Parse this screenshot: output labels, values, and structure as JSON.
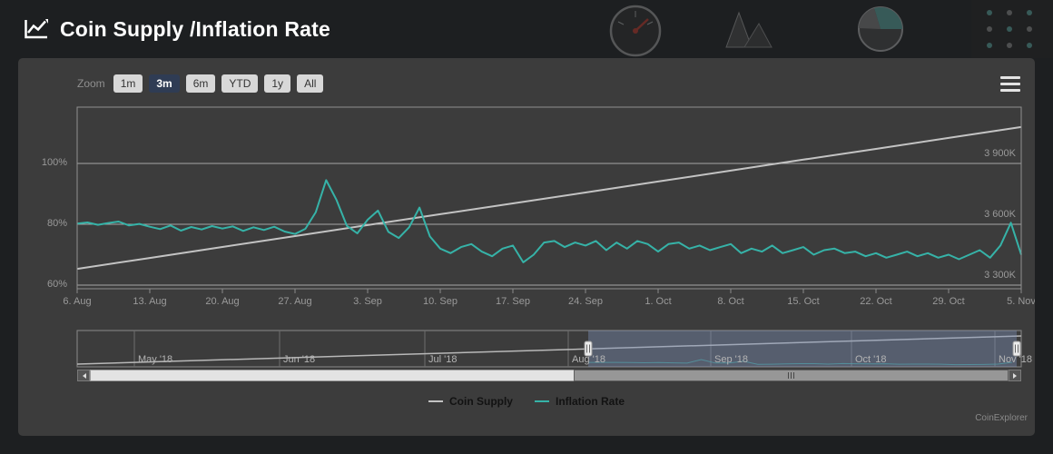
{
  "header": {
    "title": "Coin Supply /Inflation Rate"
  },
  "icons": {
    "title": "line-chart-icon",
    "context_menu": "hamburger-icon",
    "header_art": [
      "gauge-icon",
      "crystals-icon",
      "pie-chart-icon",
      "dot-grid-icon"
    ]
  },
  "toolbar": {
    "zoom_label": "Zoom",
    "buttons": [
      {
        "label": "1m",
        "selected": false
      },
      {
        "label": "3m",
        "selected": true
      },
      {
        "label": "6m",
        "selected": false
      },
      {
        "label": "YTD",
        "selected": false
      },
      {
        "label": "1y",
        "selected": false
      },
      {
        "label": "All",
        "selected": false
      }
    ]
  },
  "chart_data": {
    "type": "line",
    "title": "Coin Supply /Inflation Rate",
    "grid": "horizontal",
    "legend_position": "bottom",
    "x_tick_labels": [
      "6. Aug",
      "13. Aug",
      "20. Aug",
      "27. Aug",
      "3. Sep",
      "10. Sep",
      "17. Sep",
      "24. Sep",
      "1. Oct",
      "8. Oct",
      "15. Oct",
      "22. Oct",
      "29. Oct",
      "5. Nov"
    ],
    "y_axis_left": {
      "unit": "%",
      "tick_labels": [
        "100%",
        "80%",
        "60%"
      ],
      "tick_values": [
        100,
        80,
        60
      ],
      "range": [
        58.8,
        118.5
      ]
    },
    "y_axis_right": {
      "unit": "K",
      "tick_labels": [
        "3 900K",
        "3 600K",
        "3 300K"
      ],
      "tick_values": [
        3900,
        3600,
        3300
      ],
      "range": [
        3282,
        4178
      ]
    },
    "series": [
      {
        "name": "Coin Supply",
        "axis": "right",
        "color": "#c3c3c3",
        "values": [
          3380,
          3434,
          3488,
          3542,
          3596,
          3650,
          3703,
          3757,
          3811,
          3865,
          3919,
          3972,
          4026,
          4080
        ]
      },
      {
        "name": "Inflation Rate",
        "axis": "left",
        "color": "#36b3a8",
        "values": [
          80.2,
          80.6,
          79.8,
          80.4,
          80.9,
          79.6,
          80.1,
          79.2,
          78.4,
          79.6,
          77.9,
          79.1,
          78.3,
          79.4,
          78.6,
          79.3,
          77.8,
          79.0,
          78.1,
          79.2,
          77.6,
          76.8,
          78.5,
          84.0,
          94.5,
          88.0,
          79.5,
          77.0,
          81.5,
          84.5,
          77.5,
          75.5,
          79.0,
          85.5,
          76.0,
          72.0,
          70.5,
          72.5,
          73.5,
          71.0,
          69.5,
          72.0,
          73.0,
          67.5,
          70.0,
          74.0,
          74.5,
          72.5,
          74.0,
          73.0,
          74.5,
          71.5,
          74.0,
          72.0,
          74.5,
          73.5,
          71.0,
          73.5,
          74.0,
          72.0,
          73.0,
          71.5,
          72.5,
          73.5,
          70.5,
          72.0,
          71.0,
          73.0,
          70.5,
          71.5,
          72.5,
          70.0,
          71.5,
          72.0,
          70.5,
          71.0,
          69.5,
          70.5,
          69.0,
          70.0,
          71.0,
          69.5,
          70.5,
          69.0,
          70.0,
          68.5,
          70.0,
          71.5,
          69.0,
          73.0,
          80.5,
          70.0
        ]
      }
    ],
    "navigator": {
      "month_labels": [
        "May '18",
        "Jun '18",
        "Jul '18",
        "Aug '18",
        "Sep '18",
        "Oct '18",
        "Nov '18"
      ],
      "selected_range": [
        "6. Aug",
        "5. Nov"
      ]
    }
  },
  "legend": {
    "items": [
      {
        "label": "Coin Supply",
        "color": "#c3c3c3"
      },
      {
        "label": "Inflation Rate",
        "color": "#36b3a8"
      }
    ]
  },
  "footer": {
    "credit": "CoinExplorer"
  }
}
